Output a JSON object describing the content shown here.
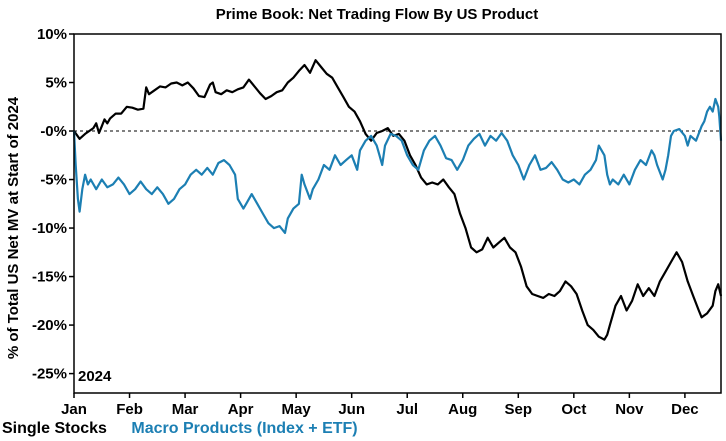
{
  "chart_data": {
    "type": "line",
    "title": "Prime Book: Net Trading Flow By US Product",
    "ylabel": "% of Total US Net MV at Start of 2024",
    "annotation": "2024",
    "ylim": [
      -27,
      10
    ],
    "xlim": [
      0,
      11.65
    ],
    "yticks": [
      {
        "v": 10,
        "label": "10%"
      },
      {
        "v": 5,
        "label": "5%"
      },
      {
        "v": 0,
        "label": "-0%"
      },
      {
        "v": -5,
        "label": "-5%"
      },
      {
        "v": -10,
        "label": "-10%"
      },
      {
        "v": -15,
        "label": "-15%"
      },
      {
        "v": -20,
        "label": "-20%"
      },
      {
        "v": -25,
        "label": "-25%"
      }
    ],
    "xticks": [
      "Jan",
      "Feb",
      "Mar",
      "Apr",
      "May",
      "Jun",
      "Jul",
      "Aug",
      "Sep",
      "Oct",
      "Nov",
      "Dec"
    ],
    "zero_line": "dashed",
    "series": [
      {
        "name": "Single Stocks",
        "color": "#000000",
        "points": [
          [
            0,
            0
          ],
          [
            0.1,
            -0.8
          ],
          [
            0.2,
            -0.3
          ],
          [
            0.35,
            0.3
          ],
          [
            0.4,
            0.8
          ],
          [
            0.45,
            -0.2
          ],
          [
            0.5,
            0.5
          ],
          [
            0.55,
            1.2
          ],
          [
            0.6,
            0.8
          ],
          [
            0.65,
            1.3
          ],
          [
            0.75,
            1.8
          ],
          [
            0.85,
            1.8
          ],
          [
            0.95,
            2.5
          ],
          [
            1.05,
            2.4
          ],
          [
            1.15,
            2.2
          ],
          [
            1.25,
            2.3
          ],
          [
            1.3,
            4.5
          ],
          [
            1.35,
            3.8
          ],
          [
            1.45,
            4.2
          ],
          [
            1.55,
            4.6
          ],
          [
            1.65,
            4.5
          ],
          [
            1.75,
            4.9
          ],
          [
            1.85,
            5.0
          ],
          [
            1.95,
            4.7
          ],
          [
            2.05,
            5.0
          ],
          [
            2.15,
            4.4
          ],
          [
            2.25,
            3.6
          ],
          [
            2.35,
            3.5
          ],
          [
            2.45,
            4.8
          ],
          [
            2.5,
            5.0
          ],
          [
            2.55,
            4.0
          ],
          [
            2.65,
            3.8
          ],
          [
            2.75,
            4.2
          ],
          [
            2.85,
            4.0
          ],
          [
            2.95,
            4.3
          ],
          [
            3.05,
            4.5
          ],
          [
            3.15,
            5.3
          ],
          [
            3.25,
            4.6
          ],
          [
            3.35,
            3.9
          ],
          [
            3.45,
            3.3
          ],
          [
            3.55,
            3.6
          ],
          [
            3.65,
            4.0
          ],
          [
            3.75,
            4.2
          ],
          [
            3.85,
            5.0
          ],
          [
            3.95,
            5.5
          ],
          [
            4.05,
            6.2
          ],
          [
            4.15,
            6.8
          ],
          [
            4.25,
            6.0
          ],
          [
            4.35,
            7.3
          ],
          [
            4.45,
            6.6
          ],
          [
            4.55,
            5.9
          ],
          [
            4.65,
            5.5
          ],
          [
            4.75,
            4.5
          ],
          [
            4.85,
            3.5
          ],
          [
            4.95,
            2.5
          ],
          [
            5.05,
            2.0
          ],
          [
            5.15,
            1.0
          ],
          [
            5.25,
            -0.3
          ],
          [
            5.35,
            -1.0
          ],
          [
            5.45,
            -0.2
          ],
          [
            5.55,
            0.0
          ],
          [
            5.65,
            0.3
          ],
          [
            5.75,
            -0.5
          ],
          [
            5.85,
            -0.3
          ],
          [
            5.95,
            -1.0
          ],
          [
            6.05,
            -2.5
          ],
          [
            6.15,
            -3.5
          ],
          [
            6.25,
            -4.8
          ],
          [
            6.35,
            -5.5
          ],
          [
            6.45,
            -5.3
          ],
          [
            6.55,
            -5.5
          ],
          [
            6.65,
            -5.0
          ],
          [
            6.75,
            -5.8
          ],
          [
            6.85,
            -6.5
          ],
          [
            6.95,
            -8.5
          ],
          [
            7.05,
            -10.0
          ],
          [
            7.15,
            -12.0
          ],
          [
            7.25,
            -12.5
          ],
          [
            7.35,
            -12.2
          ],
          [
            7.45,
            -11.0
          ],
          [
            7.55,
            -12.0
          ],
          [
            7.65,
            -11.5
          ],
          [
            7.75,
            -11.0
          ],
          [
            7.85,
            -12.0
          ],
          [
            7.95,
            -12.5
          ],
          [
            8.05,
            -14.0
          ],
          [
            8.15,
            -16.0
          ],
          [
            8.25,
            -16.8
          ],
          [
            8.35,
            -17.0
          ],
          [
            8.45,
            -17.2
          ],
          [
            8.55,
            -16.8
          ],
          [
            8.65,
            -17.0
          ],
          [
            8.75,
            -16.5
          ],
          [
            8.85,
            -15.5
          ],
          [
            8.95,
            -16.0
          ],
          [
            9.05,
            -16.8
          ],
          [
            9.15,
            -18.5
          ],
          [
            9.25,
            -20.0
          ],
          [
            9.35,
            -20.5
          ],
          [
            9.45,
            -21.2
          ],
          [
            9.55,
            -21.5
          ],
          [
            9.6,
            -21.0
          ],
          [
            9.65,
            -20.0
          ],
          [
            9.75,
            -18.0
          ],
          [
            9.85,
            -17.0
          ],
          [
            9.95,
            -18.5
          ],
          [
            10.05,
            -17.5
          ],
          [
            10.15,
            -15.8
          ],
          [
            10.25,
            -17.0
          ],
          [
            10.35,
            -16.2
          ],
          [
            10.45,
            -17.0
          ],
          [
            10.55,
            -15.5
          ],
          [
            10.65,
            -14.5
          ],
          [
            10.75,
            -13.5
          ],
          [
            10.85,
            -12.5
          ],
          [
            10.95,
            -13.5
          ],
          [
            11.05,
            -15.5
          ],
          [
            11.15,
            -17.0
          ],
          [
            11.25,
            -18.5
          ],
          [
            11.3,
            -19.2
          ],
          [
            11.4,
            -18.8
          ],
          [
            11.5,
            -18.0
          ],
          [
            11.55,
            -16.5
          ],
          [
            11.6,
            -15.8
          ],
          [
            11.65,
            -17.0
          ]
        ]
      },
      {
        "name": "Macro Products (Index + ETF)",
        "color": "#1C7FB3",
        "points": [
          [
            0,
            0
          ],
          [
            0.03,
            -3.5
          ],
          [
            0.07,
            -7.0
          ],
          [
            0.1,
            -8.3
          ],
          [
            0.15,
            -6.0
          ],
          [
            0.2,
            -4.5
          ],
          [
            0.25,
            -5.5
          ],
          [
            0.3,
            -5.0
          ],
          [
            0.4,
            -6.0
          ],
          [
            0.5,
            -5.0
          ],
          [
            0.6,
            -5.8
          ],
          [
            0.7,
            -5.5
          ],
          [
            0.8,
            -4.8
          ],
          [
            0.9,
            -5.5
          ],
          [
            1.0,
            -6.5
          ],
          [
            1.1,
            -6.0
          ],
          [
            1.2,
            -5.2
          ],
          [
            1.3,
            -6.0
          ],
          [
            1.4,
            -6.5
          ],
          [
            1.5,
            -5.8
          ],
          [
            1.6,
            -6.5
          ],
          [
            1.7,
            -7.5
          ],
          [
            1.8,
            -7.0
          ],
          [
            1.9,
            -6.0
          ],
          [
            2.0,
            -5.5
          ],
          [
            2.1,
            -4.5
          ],
          [
            2.2,
            -4.0
          ],
          [
            2.3,
            -4.5
          ],
          [
            2.4,
            -3.8
          ],
          [
            2.5,
            -4.5
          ],
          [
            2.6,
            -3.3
          ],
          [
            2.7,
            -3.0
          ],
          [
            2.8,
            -3.5
          ],
          [
            2.9,
            -4.5
          ],
          [
            2.95,
            -7.0
          ],
          [
            3.05,
            -8.0
          ],
          [
            3.1,
            -7.5
          ],
          [
            3.2,
            -6.5
          ],
          [
            3.3,
            -7.5
          ],
          [
            3.4,
            -8.5
          ],
          [
            3.5,
            -9.5
          ],
          [
            3.6,
            -10.0
          ],
          [
            3.7,
            -9.8
          ],
          [
            3.8,
            -10.5
          ],
          [
            3.85,
            -9.0
          ],
          [
            3.95,
            -8.0
          ],
          [
            4.05,
            -7.5
          ],
          [
            4.1,
            -4.5
          ],
          [
            4.15,
            -5.5
          ],
          [
            4.25,
            -7.0
          ],
          [
            4.3,
            -6.0
          ],
          [
            4.4,
            -5.0
          ],
          [
            4.5,
            -3.5
          ],
          [
            4.6,
            -4.0
          ],
          [
            4.7,
            -2.5
          ],
          [
            4.8,
            -3.5
          ],
          [
            4.9,
            -3.0
          ],
          [
            5.0,
            -2.5
          ],
          [
            5.1,
            -4.0
          ],
          [
            5.15,
            -2.0
          ],
          [
            5.25,
            -1.0
          ],
          [
            5.35,
            -0.5
          ],
          [
            5.45,
            -1.5
          ],
          [
            5.5,
            -2.5
          ],
          [
            5.55,
            -3.5
          ],
          [
            5.6,
            -1.5
          ],
          [
            5.7,
            -0.3
          ],
          [
            5.8,
            -0.5
          ],
          [
            5.9,
            -1.0
          ],
          [
            6.0,
            -2.5
          ],
          [
            6.1,
            -3.5
          ],
          [
            6.2,
            -4.0
          ],
          [
            6.3,
            -2.0
          ],
          [
            6.4,
            -1.0
          ],
          [
            6.5,
            -0.5
          ],
          [
            6.6,
            -1.5
          ],
          [
            6.7,
            -2.8
          ],
          [
            6.8,
            -3.0
          ],
          [
            6.9,
            -4.0
          ],
          [
            7.0,
            -3.0
          ],
          [
            7.1,
            -1.5
          ],
          [
            7.2,
            -0.8
          ],
          [
            7.3,
            -0.3
          ],
          [
            7.4,
            -1.5
          ],
          [
            7.5,
            -0.5
          ],
          [
            7.6,
            -1.0
          ],
          [
            7.7,
            -0.2
          ],
          [
            7.8,
            -1.0
          ],
          [
            7.9,
            -2.5
          ],
          [
            8.0,
            -3.5
          ],
          [
            8.1,
            -5.0
          ],
          [
            8.2,
            -3.5
          ],
          [
            8.3,
            -2.5
          ],
          [
            8.4,
            -4.0
          ],
          [
            8.5,
            -3.8
          ],
          [
            8.6,
            -3.2
          ],
          [
            8.7,
            -4.0
          ],
          [
            8.8,
            -5.0
          ],
          [
            8.9,
            -5.3
          ],
          [
            9.0,
            -5.0
          ],
          [
            9.1,
            -5.5
          ],
          [
            9.2,
            -4.5
          ],
          [
            9.3,
            -4.0
          ],
          [
            9.4,
            -3.0
          ],
          [
            9.45,
            -1.5
          ],
          [
            9.55,
            -2.5
          ],
          [
            9.6,
            -4.5
          ],
          [
            9.65,
            -5.5
          ],
          [
            9.7,
            -5.0
          ],
          [
            9.8,
            -5.5
          ],
          [
            9.9,
            -4.5
          ],
          [
            10.0,
            -5.5
          ],
          [
            10.1,
            -4.0
          ],
          [
            10.2,
            -3.0
          ],
          [
            10.3,
            -3.5
          ],
          [
            10.4,
            -2.0
          ],
          [
            10.45,
            -2.5
          ],
          [
            10.5,
            -3.5
          ],
          [
            10.6,
            -5.0
          ],
          [
            10.65,
            -4.0
          ],
          [
            10.7,
            -2.5
          ],
          [
            10.75,
            -0.5
          ],
          [
            10.8,
            0.0
          ],
          [
            10.9,
            0.2
          ],
          [
            11.0,
            -0.5
          ],
          [
            11.05,
            -1.5
          ],
          [
            11.1,
            -0.5
          ],
          [
            11.2,
            -1.0
          ],
          [
            11.3,
            0.5
          ],
          [
            11.35,
            1.0
          ],
          [
            11.4,
            2.0
          ],
          [
            11.45,
            2.5
          ],
          [
            11.5,
            2.0
          ],
          [
            11.55,
            3.3
          ],
          [
            11.6,
            2.5
          ],
          [
            11.62,
            1.5
          ],
          [
            11.65,
            -1.0
          ]
        ]
      }
    ]
  }
}
